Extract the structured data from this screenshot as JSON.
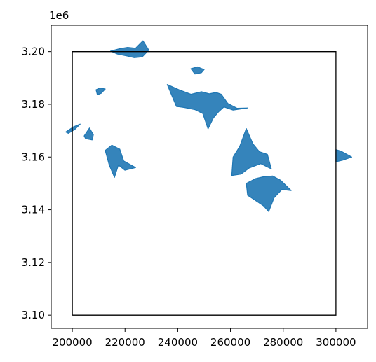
{
  "chart_data": {
    "type": "line",
    "title": "",
    "xlabel": "",
    "ylabel": "",
    "offset_label": "1e6",
    "xlim": [
      192000,
      312000
    ],
    "ylim": [
      3095000,
      3210000
    ],
    "x_ticks": [
      200000,
      220000,
      240000,
      260000,
      280000,
      300000
    ],
    "x_tick_labels": [
      "200000",
      "220000",
      "240000",
      "260000",
      "280000",
      "300000"
    ],
    "y_ticks": [
      3100000,
      3120000,
      3140000,
      3160000,
      3180000,
      3200000
    ],
    "y_tick_labels": [
      "3.10",
      "3.12",
      "3.14",
      "3.16",
      "3.18",
      "3.20"
    ],
    "grid": false,
    "colors": {
      "glacier": "#1f77b4",
      "bbox": "#000000",
      "axes": "#000000"
    },
    "bounding_box": {
      "x": [
        200000,
        300000
      ],
      "y": [
        3100000,
        3200000
      ]
    },
    "series": [
      {
        "x": [
          200000,
          300000,
          300000,
          200000,
          200000
        ],
        "y": [
          3100000,
          3100000,
          3200000,
          3200000,
          3100000
        ]
      }
    ],
    "glacier_clusters": [
      {
        "x": [
          214500,
          218000,
          221000,
          224000,
          226800,
          229000,
          226500,
          223500,
          220500,
          217000,
          214500
        ],
        "y": [
          3200200,
          3201100,
          3201600,
          3201300,
          3204100,
          3200600,
          3198000,
          3197700,
          3198400,
          3199100,
          3200200
        ]
      },
      {
        "x": [
          245000,
          247500,
          250000,
          249000,
          246500,
          245000
        ],
        "y": [
          3193500,
          3194200,
          3193200,
          3192000,
          3191500,
          3193500
        ]
      },
      {
        "x": [
          236000,
          240500,
          245000,
          249000,
          252000,
          254500,
          256500,
          259000,
          262500,
          266500,
          261000,
          257500,
          255500,
          253500,
          251500,
          249500,
          246500,
          242500,
          239500,
          236000
        ],
        "y": [
          3187500,
          3185500,
          3183800,
          3184800,
          3184000,
          3184500,
          3183800,
          3180300,
          3178500,
          3178600,
          3177800,
          3179000,
          3177200,
          3174800,
          3170700,
          3176500,
          3178000,
          3178800,
          3179200,
          3187500
        ]
      },
      {
        "x": [
          209000,
          210500,
          212500,
          211000,
          209500,
          209000
        ],
        "y": [
          3185500,
          3186200,
          3185800,
          3184200,
          3183600,
          3185500
        ]
      },
      {
        "x": [
          197500,
          200500,
          203000,
          201000,
          198500,
          197500
        ],
        "y": [
          3169500,
          3171500,
          3172500,
          3170500,
          3169000,
          3169500
        ]
      },
      {
        "x": [
          204500,
          206500,
          208000,
          207500,
          205000,
          204500
        ],
        "y": [
          3168000,
          3171000,
          3168500,
          3166500,
          3167000,
          3168000
        ]
      },
      {
        "x": [
          212500,
          215000,
          218000,
          219500,
          224000,
          220000,
          217500,
          216000,
          214000,
          212500
        ],
        "y": [
          3162500,
          3164500,
          3163000,
          3158500,
          3156000,
          3155000,
          3157000,
          3152300,
          3157000,
          3162500
        ]
      },
      {
        "x": [
          261000,
          263500,
          266000,
          268500,
          271000,
          274000,
          275500,
          271500,
          267000,
          264000,
          260500,
          261000
        ],
        "y": [
          3160000,
          3164000,
          3170800,
          3165000,
          3162000,
          3161000,
          3155500,
          3157500,
          3155800,
          3153500,
          3153000,
          3160000
        ]
      },
      {
        "x": [
          266000,
          269500,
          272500,
          276000,
          279000,
          283000,
          279500,
          276500,
          274500,
          272500,
          269500,
          266500,
          266000
        ],
        "y": [
          3150000,
          3151800,
          3152500,
          3152800,
          3151200,
          3147300,
          3147700,
          3144500,
          3139300,
          3141500,
          3143500,
          3145500,
          3150000
        ]
      },
      {
        "x": [
          300000,
          302000,
          306000,
          302500,
          300000,
          300000
        ],
        "y": [
          3162800,
          3162200,
          3160000,
          3158800,
          3158200,
          3162800
        ]
      }
    ]
  }
}
